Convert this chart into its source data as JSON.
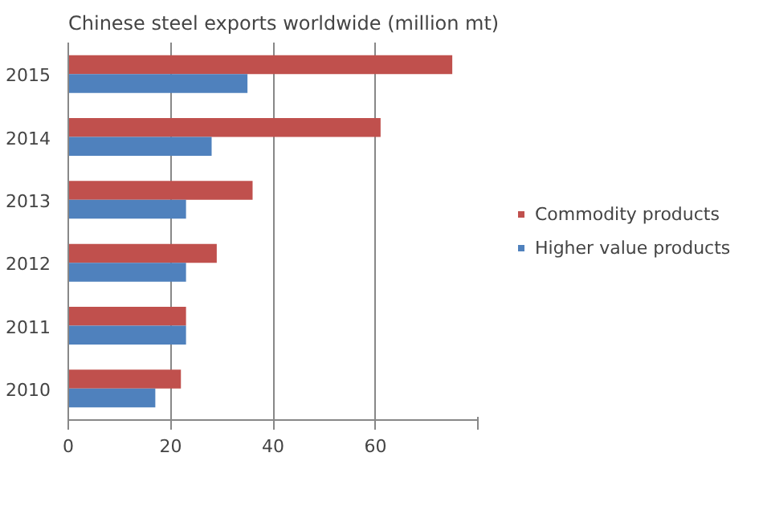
{
  "chart_data": {
    "type": "bar",
    "orientation": "horizontal",
    "title": "Chinese steel exports worldwide (million mt)",
    "categories": [
      "2015",
      "2014",
      "2013",
      "2012",
      "2011",
      "2010"
    ],
    "series": [
      {
        "name": "Commodity products",
        "color": "#c0504d",
        "values": [
          75,
          61,
          36,
          29,
          23,
          22
        ]
      },
      {
        "name": "Higher value products",
        "color": "#4f81bd",
        "values": [
          35,
          28,
          23,
          23,
          23,
          17
        ]
      }
    ],
    "xlim": [
      0,
      80
    ],
    "xticks": [
      0,
      20,
      40,
      60,
      {
        "value": 80,
        "label": null
      }
    ],
    "grid": "x",
    "legend": "right"
  }
}
